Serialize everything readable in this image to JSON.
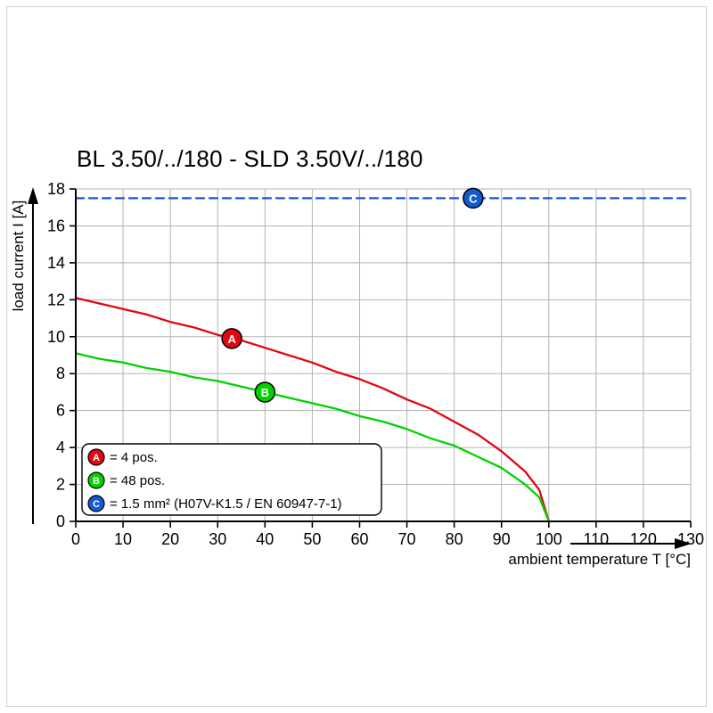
{
  "frame": {
    "border_color": "#cfcfcf"
  },
  "chart_data": {
    "type": "line",
    "title": "BL 3.50/../180 - SLD 3.50V/../180",
    "xlabel": "ambient temperature T [°C]",
    "ylabel": "load current I [A]",
    "xlim": [
      0,
      130
    ],
    "ylim": [
      0,
      18
    ],
    "xticks": [
      0,
      10,
      20,
      30,
      40,
      50,
      60,
      70,
      80,
      90,
      100,
      110,
      120,
      130
    ],
    "yticks": [
      0,
      2,
      4,
      6,
      8,
      10,
      12,
      14,
      16,
      18
    ],
    "grid": true,
    "legend_position": "bottom-left",
    "colors": {
      "grid": "#b3b3b3",
      "axis": "#000000"
    },
    "series": [
      {
        "name": "A",
        "label": "= 4 pos.",
        "color": "#e30613",
        "style": "solid",
        "marker": {
          "x": 33,
          "y": 9.9
        },
        "points": [
          [
            0,
            12.1
          ],
          [
            5,
            11.8
          ],
          [
            10,
            11.5
          ],
          [
            15,
            11.2
          ],
          [
            20,
            10.8
          ],
          [
            25,
            10.5
          ],
          [
            30,
            10.1
          ],
          [
            35,
            9.8
          ],
          [
            40,
            9.4
          ],
          [
            45,
            9.0
          ],
          [
            50,
            8.6
          ],
          [
            55,
            8.1
          ],
          [
            60,
            7.7
          ],
          [
            65,
            7.2
          ],
          [
            70,
            6.6
          ],
          [
            75,
            6.1
          ],
          [
            80,
            5.4
          ],
          [
            85,
            4.7
          ],
          [
            90,
            3.8
          ],
          [
            95,
            2.7
          ],
          [
            98,
            1.7
          ],
          [
            100,
            0
          ]
        ]
      },
      {
        "name": "B",
        "label": "= 48 pos.",
        "color": "#00d200",
        "style": "solid",
        "marker": {
          "x": 40,
          "y": 7.0
        },
        "points": [
          [
            0,
            9.1
          ],
          [
            5,
            8.8
          ],
          [
            10,
            8.6
          ],
          [
            15,
            8.3
          ],
          [
            20,
            8.1
          ],
          [
            25,
            7.8
          ],
          [
            30,
            7.6
          ],
          [
            35,
            7.3
          ],
          [
            40,
            7.0
          ],
          [
            45,
            6.7
          ],
          [
            50,
            6.4
          ],
          [
            55,
            6.1
          ],
          [
            60,
            5.7
          ],
          [
            65,
            5.4
          ],
          [
            70,
            5.0
          ],
          [
            75,
            4.5
          ],
          [
            80,
            4.1
          ],
          [
            85,
            3.5
          ],
          [
            90,
            2.9
          ],
          [
            95,
            2.0
          ],
          [
            98,
            1.3
          ],
          [
            100,
            0
          ]
        ]
      },
      {
        "name": "C",
        "label": "= 1.5 mm² (H07V-K1.5 / EN 60947-7-1)",
        "color": "#1459d2",
        "style": "dashed",
        "marker": {
          "x": 84,
          "y": 17.5
        },
        "points": [
          [
            0,
            17.5
          ],
          [
            130,
            17.5
          ]
        ]
      }
    ]
  }
}
